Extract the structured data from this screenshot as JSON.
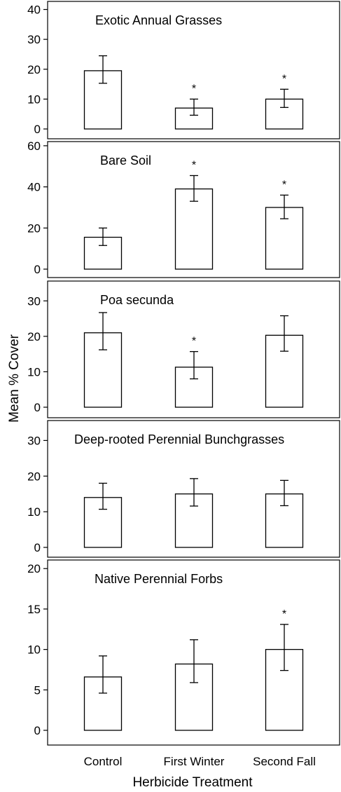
{
  "chart_data": {
    "type": "bar",
    "categories": [
      "Control",
      "First Winter",
      "Second Fall"
    ],
    "xlabel": "Herbicide Treatment",
    "ylabel": "Mean % Cover",
    "panels": [
      {
        "title": "Exotic Annual Grasses",
        "ylim": [
          0,
          42
        ],
        "yticks": [
          0,
          10,
          20,
          30,
          40
        ],
        "values": [
          19.5,
          7,
          10
        ],
        "err_low": [
          15.3,
          4.6,
          7.2
        ],
        "err_high": [
          24.5,
          10,
          13.3
        ],
        "significant": [
          false,
          true,
          true
        ]
      },
      {
        "title": "Bare Soil",
        "ylim": [
          0,
          61
        ],
        "yticks": [
          0,
          20,
          40,
          60
        ],
        "values": [
          15.5,
          39,
          30
        ],
        "err_low": [
          11.5,
          33,
          24.5
        ],
        "err_high": [
          20,
          45.5,
          36
        ],
        "significant": [
          false,
          true,
          true
        ]
      },
      {
        "title": "Poa secunda",
        "ylim": [
          0,
          35
        ],
        "yticks": [
          0,
          10,
          20,
          30
        ],
        "values": [
          21,
          11.3,
          20.3
        ],
        "err_low": [
          16.2,
          8,
          15.8
        ],
        "err_high": [
          26.7,
          15.7,
          25.8
        ],
        "significant": [
          false,
          true,
          false
        ]
      },
      {
        "title": "Deep-rooted Perennial Bunchgrasses",
        "ylim": [
          0,
          35
        ],
        "yticks": [
          0,
          10,
          20,
          30
        ],
        "values": [
          14,
          15,
          15
        ],
        "err_low": [
          10.7,
          11.6,
          11.7
        ],
        "err_high": [
          18,
          19.3,
          18.8
        ],
        "significant": [
          false,
          false,
          false
        ]
      },
      {
        "title": "Native Perennial Forbs",
        "ylim": [
          0,
          20.8
        ],
        "yticks": [
          0,
          5,
          10,
          15,
          20
        ],
        "values": [
          6.6,
          8.2,
          10
        ],
        "err_low": [
          4.6,
          5.9,
          7.4
        ],
        "err_high": [
          9.2,
          11.2,
          13.1
        ],
        "significant": [
          false,
          false,
          true
        ]
      }
    ],
    "significance_marker": "*",
    "bar_fill": "#ffffff",
    "bar_stroke": "#000000",
    "grid": false,
    "legend": "none"
  }
}
